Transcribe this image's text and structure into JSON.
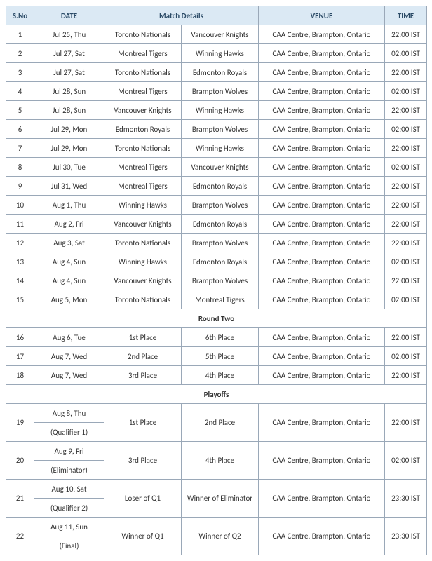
{
  "headers": {
    "sno": "S.No",
    "date": "DATE",
    "match": "Match Details",
    "venue": "VENUE",
    "time": "TIME"
  },
  "sections": {
    "round_two": "Round Two",
    "playoffs": "Playoffs"
  },
  "round1": [
    {
      "sno": "1",
      "date": "Jul 25, Thu",
      "t1": "Toronto Nationals",
      "t2": "Vancouver Knights",
      "venue": "CAA Centre, Brampton, Ontario",
      "time": "22:00 IST"
    },
    {
      "sno": "2",
      "date": "Jul 27, Sat",
      "t1": "Montreal Tigers",
      "t2": "Winning Hawks",
      "venue": "CAA Centre, Brampton, Ontario",
      "time": "02:00 IST"
    },
    {
      "sno": "3",
      "date": "Jul 27, Sat",
      "t1": "Toronto Nationals",
      "t2": "Edmonton Royals",
      "venue": "CAA Centre, Brampton, Ontario",
      "time": "22:00 IST"
    },
    {
      "sno": "4",
      "date": "Jul 28, Sun",
      "t1": "Montreal Tigers",
      "t2": "Brampton Wolves",
      "venue": "CAA Centre, Brampton, Ontario",
      "time": "02:00 IST"
    },
    {
      "sno": "5",
      "date": "Jul 28, Sun",
      "t1": "Vancouver Knights",
      "t2": "Winning Hawks",
      "venue": "CAA Centre, Brampton, Ontario",
      "time": "22:00 IST"
    },
    {
      "sno": "6",
      "date": "Jul 29, Mon",
      "t1": "Edmonton Royals",
      "t2": "Brampton Wolves",
      "venue": "CAA Centre, Brampton, Ontario",
      "time": "02:00 IST"
    },
    {
      "sno": "7",
      "date": "Jul 29, Mon",
      "t1": "Toronto Nationals",
      "t2": "Winning Hawks",
      "venue": "CAA Centre, Brampton, Ontario",
      "time": "22:00 IST"
    },
    {
      "sno": "8",
      "date": "Jul 30, Tue",
      "t1": "Montreal Tigers",
      "t2": "Vancouver Knights",
      "venue": "CAA Centre, Brampton, Ontario",
      "time": "02:00 IST"
    },
    {
      "sno": "9",
      "date": "Jul 31, Wed",
      "t1": "Montreal Tigers",
      "t2": "Edmonton Royals",
      "venue": "CAA Centre, Brampton, Ontario",
      "time": "22:00 IST"
    },
    {
      "sno": "10",
      "date": "Aug 1, Thu",
      "t1": "Winning Hawks",
      "t2": "Brampton Wolves",
      "venue": "CAA Centre, Brampton, Ontario",
      "time": "22:00 IST"
    },
    {
      "sno": "11",
      "date": "Aug 2, Fri",
      "t1": "Vancouver Knights",
      "t2": "Edmonton Royals",
      "venue": "CAA Centre, Brampton, Ontario",
      "time": "22:00 IST"
    },
    {
      "sno": "12",
      "date": "Aug 3, Sat",
      "t1": "Toronto Nationals",
      "t2": "Brampton Wolves",
      "venue": "CAA Centre, Brampton, Ontario",
      "time": "22:00 IST"
    },
    {
      "sno": "13",
      "date": "Aug 4, Sun",
      "t1": "Winning Hawks",
      "t2": "Edmonton Royals",
      "venue": "CAA Centre, Brampton, Ontario",
      "time": "02:00 IST"
    },
    {
      "sno": "14",
      "date": "Aug 4, Sun",
      "t1": "Vancouver Knights",
      "t2": "Brampton Wolves",
      "venue": "CAA Centre, Brampton, Ontario",
      "time": "22:00 IST"
    },
    {
      "sno": "15",
      "date": "Aug 5, Mon",
      "t1": "Toronto Nationals",
      "t2": "Montreal Tigers",
      "venue": "CAA Centre, Brampton, Ontario",
      "time": "02:00 IST"
    }
  ],
  "round2": [
    {
      "sno": "16",
      "date": "Aug 6, Tue",
      "t1": "1st Place",
      "t2": "6th Place",
      "venue": "CAA Centre, Brampton, Ontario",
      "time": "22:00 IST"
    },
    {
      "sno": "17",
      "date": "Aug 7, Wed",
      "t1": "2nd Place",
      "t2": "5th Place",
      "venue": "CAA Centre, Brampton, Ontario",
      "time": "02:00 IST"
    },
    {
      "sno": "18",
      "date": "Aug 7, Wed",
      "t1": "3rd Place",
      "t2": "4th Place",
      "venue": "CAA Centre, Brampton, Ontario",
      "time": "22:00 IST"
    }
  ],
  "playoffs": [
    {
      "sno": "19",
      "date1": "Aug 8, Thu",
      "date2": "(Qualifier 1)",
      "t1": "1st Place",
      "t2": "2nd Place",
      "venue": "CAA Centre, Brampton, Ontario",
      "time": "22:00 IST"
    },
    {
      "sno": "20",
      "date1": "Aug 9, Fri",
      "date2": "(Eliminator)",
      "t1": "3rd Place",
      "t2": "4th Place",
      "venue": "CAA Centre, Brampton, Ontario",
      "time": "02:00 IST"
    },
    {
      "sno": "21",
      "date1": "Aug 10, Sat",
      "date2": "(Qualifier 2)",
      "t1": "Loser of Q1",
      "t2": "Winner of Eliminator",
      "venue": "CAA Centre, Brampton, Ontario",
      "time": "23:30 IST"
    },
    {
      "sno": "22",
      "date1": "Aug 11, Sun",
      "date2": "(Final)",
      "t1": "Winner of Q1",
      "t2": "Winner of Q2",
      "venue": "CAA Centre, Brampton, Ontario",
      "time": "23:30 IST"
    }
  ]
}
